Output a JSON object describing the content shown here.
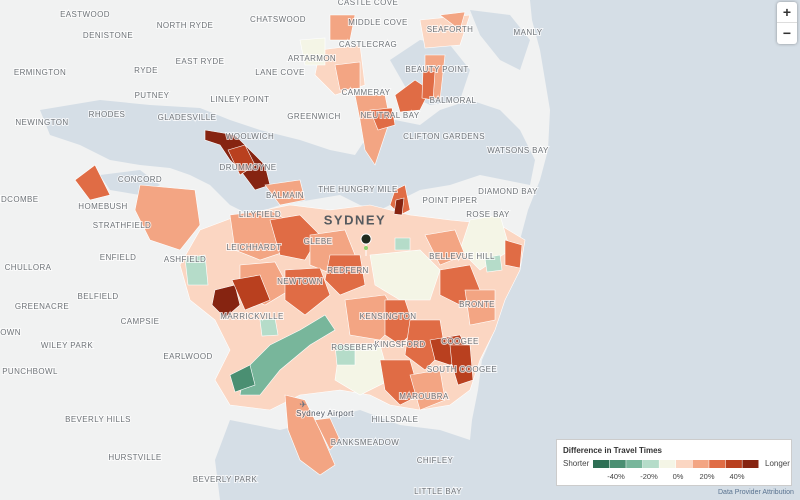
{
  "places": [
    "EASTWOOD",
    "NORTH RYDE",
    "CHATSWOOD",
    "CASTLE COVE",
    "MIDDLE COVE",
    "DENISTONE",
    "CASTLECRAG",
    "SEAFORTH",
    "MANLY",
    "EAST RYDE",
    "ARTARMON",
    "BEAUTY POINT",
    "ERMINGTON",
    "RYDE",
    "LANE COVE",
    "PUTNEY",
    "CAMMERAY",
    "BALMORAL",
    "LINLEY POINT",
    "RHODES",
    "GLADESVILLE",
    "NEWINGTON",
    "WOOLWICH",
    "GREENWICH",
    "NEUTRAL BAY",
    "CLIFTON GARDENS",
    "WATSONS BAY",
    "CONCORD",
    "DRUMMOYNE",
    "HOMEBUSH",
    "BALMAIN",
    "THE HUNGRY MILE",
    "DIAMOND BAY",
    "LIDCOMBE",
    "POINT PIPER",
    "ROSE BAY",
    "LILYFIELD",
    "STRATHFIELD",
    "LEICHHARDT",
    "GLEBE",
    "ENFIELD",
    "ASHFIELD",
    "BELLEVUE HILL",
    "CHULLORA",
    "REDFERN",
    "NEWTOWN",
    "BELFIELD",
    "GREENACRE",
    "BRONTE",
    "CAMPSIE",
    "MARRICKVILLE",
    "KENSINGTON",
    "TOWN",
    "WILEY PARK",
    "COOGEE",
    "KINGSFORD",
    "ROSEBERY",
    "EARLWOOD",
    "PUNCHBOWL",
    "SOUTH COOGEE",
    "MAROUBRA",
    "BEVERLY HILLS",
    "HILLSDALE",
    "BANKSMEADOW",
    "HURSTVILLE",
    "CHIFLEY",
    "BEVERLY PARK",
    "LITTLE BAY"
  ],
  "city": "SYDNEY",
  "airport": "Sydney Airport",
  "zoom": {
    "in": "+",
    "out": "−"
  },
  "legend": {
    "title": "Difference in Travel Times",
    "low": "Shorter",
    "high": "Longer",
    "ticks": [
      "-40%",
      "-20%",
      "0%",
      "20%",
      "40%"
    ],
    "colors": [
      "#2e6f55",
      "#4a8f72",
      "#78b69b",
      "#b5dcc9",
      "#f4f5e6",
      "#fbd6c2",
      "#f3a583",
      "#e06c45",
      "#b9401f",
      "#862411"
    ]
  },
  "attribution": "Data Provider Attribution"
}
